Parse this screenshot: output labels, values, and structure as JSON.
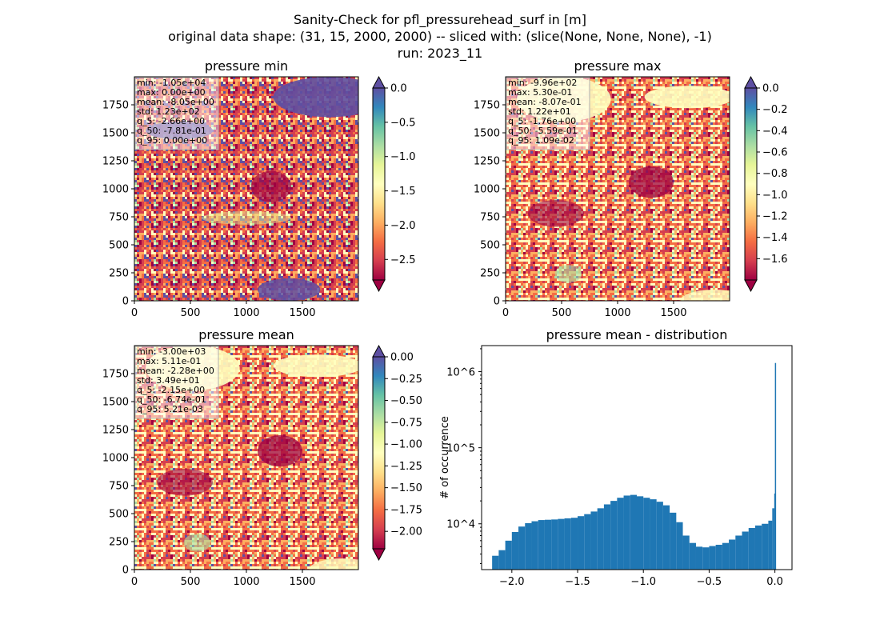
{
  "figure": {
    "title_lines": [
      "Sanity-Check for pfl_pressurehead_surf in [m]",
      "original data shape: (31, 15, 2000, 2000) -- sliced with: (slice(None, None, None), -1)",
      "run: 2023_11"
    ]
  },
  "colormap": [
    "#9e0142",
    "#d53e4f",
    "#f46d43",
    "#fdae61",
    "#fee08b",
    "#ffffbf",
    "#e6f598",
    "#abdda4",
    "#66c2a5",
    "#3288bd",
    "#5e4fa2"
  ],
  "chart_data": [
    {
      "type": "heatmap",
      "title": "pressure min",
      "x_ticks": [
        0,
        500,
        1000,
        1500
      ],
      "y_ticks": [
        0,
        250,
        500,
        750,
        1000,
        1250,
        1500,
        1750
      ],
      "xlim": [
        0,
        2000
      ],
      "ylim": [
        0,
        2000
      ],
      "colorbar": {
        "vmin": -2.8,
        "vmax": 0.0,
        "ticks": [
          0.0,
          -0.5,
          -1.0,
          -1.5,
          -2.0,
          -2.5
        ],
        "tick_labels": [
          "0.0",
          "−0.5",
          "−1.0",
          "−1.5",
          "−2.0",
          "−2.5"
        ],
        "extend": "both"
      },
      "stats": [
        "min: -1.05e+04",
        "max: 0.00e+00",
        "mean: -8.05e+00",
        "std: 1.23e+02",
        "q_5: -2.66e+00",
        "q_50: -7.81e-01",
        "q_95: 0.00e+00"
      ],
      "dominant": "dry"
    },
    {
      "type": "heatmap",
      "title": "pressure max",
      "x_ticks": [
        0,
        500,
        1000,
        1500
      ],
      "y_ticks": [
        0,
        250,
        500,
        750,
        1000,
        1250,
        1500,
        1750
      ],
      "xlim": [
        0,
        2000
      ],
      "ylim": [
        0,
        2000
      ],
      "colorbar": {
        "vmin": -1.8,
        "vmax": 0.0,
        "ticks": [
          0.0,
          -0.2,
          -0.4,
          -0.6,
          -0.8,
          -1.0,
          -1.2,
          -1.4,
          -1.6
        ],
        "tick_labels": [
          "0.0",
          "−0.2",
          "−0.4",
          "−0.6",
          "−0.8",
          "−1.0",
          "−1.2",
          "−1.4",
          "−1.6"
        ],
        "extend": "both"
      },
      "stats": [
        "min: -9.96e+02",
        "max: 5.30e-01",
        "mean: -8.07e-01",
        "std: 1.22e+01",
        "q_5: -1.76e+00",
        "q_50: -5.59e-01",
        "q_95: 1.09e-02"
      ],
      "dominant": "wet"
    },
    {
      "type": "heatmap",
      "title": "pressure mean",
      "x_ticks": [
        0,
        500,
        1000,
        1500
      ],
      "y_ticks": [
        0,
        250,
        500,
        750,
        1000,
        1250,
        1500,
        1750
      ],
      "xlim": [
        0,
        2000
      ],
      "ylim": [
        0,
        2000
      ],
      "colorbar": {
        "vmin": -2.2,
        "vmax": 0.0,
        "ticks": [
          0.0,
          -0.25,
          -0.5,
          -0.75,
          -1.0,
          -1.25,
          -1.5,
          -1.75,
          -2.0
        ],
        "tick_labels": [
          "0.00",
          "−0.25",
          "−0.50",
          "−0.75",
          "−1.00",
          "−1.25",
          "−1.50",
          "−1.75",
          "−2.00"
        ],
        "extend": "both"
      },
      "stats": [
        "min: -3.00e+03",
        "max: 5.11e-01",
        "mean: -2.28e+00",
        "std: 3.49e+01",
        "q_5: -2.15e+00",
        "q_50: -6.74e-01",
        "q_95: 5.21e-03"
      ],
      "dominant": "wet"
    },
    {
      "type": "bar",
      "title": "pressure mean - distribution",
      "ylabel": "# of occurrence",
      "xlabel": "",
      "yscale": "log",
      "color": "#1f77b4",
      "xlim": [
        -2.23,
        0.13
      ],
      "ylim": [
        2500,
        2200000
      ],
      "x_ticks": [
        -2.0,
        -1.5,
        -1.0,
        -0.5,
        0.0
      ],
      "x_tick_labels": [
        "−2.0",
        "−1.5",
        "−1.0",
        "−0.5",
        "0.0"
      ],
      "y_ticks": [
        10000,
        100000,
        1000000
      ],
      "y_tick_labels": [
        "10^4",
        "10^5",
        "10^6"
      ],
      "x": [
        -2.15,
        -2.1,
        -2.05,
        -2.0,
        -1.95,
        -1.9,
        -1.85,
        -1.8,
        -1.75,
        -1.7,
        -1.65,
        -1.6,
        -1.55,
        -1.5,
        -1.45,
        -1.4,
        -1.35,
        -1.3,
        -1.25,
        -1.2,
        -1.15,
        -1.1,
        -1.05,
        -1.0,
        -0.95,
        -0.9,
        -0.85,
        -0.8,
        -0.75,
        -0.7,
        -0.65,
        -0.6,
        -0.55,
        -0.5,
        -0.45,
        -0.4,
        -0.35,
        -0.3,
        -0.25,
        -0.2,
        -0.15,
        -0.1,
        -0.05,
        -0.02,
        -0.005,
        0.0
      ],
      "values": [
        3800,
        4500,
        6000,
        7800,
        9200,
        10200,
        10800,
        11200,
        11300,
        11400,
        11600,
        11800,
        12000,
        12600,
        13400,
        14500,
        16000,
        18000,
        20000,
        22000,
        23500,
        24000,
        23000,
        22000,
        21000,
        19500,
        17500,
        14000,
        10500,
        7000,
        5600,
        5000,
        4900,
        5100,
        5300,
        5600,
        6200,
        7000,
        7900,
        8800,
        9500,
        10000,
        11000,
        16000,
        25000,
        1300000
      ]
    }
  ]
}
